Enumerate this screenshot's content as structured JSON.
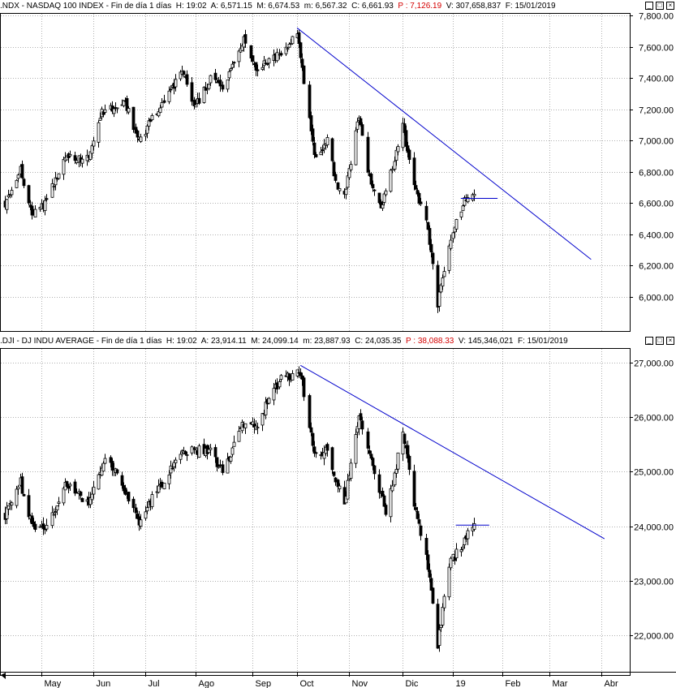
{
  "panels": [
    {
      "symbol": ".NDX",
      "name": "NASDAQ 100 INDEX",
      "period": "Fin de día 1 días",
      "h_label": "H:",
      "h_value": "19:02",
      "a_label": "A:",
      "a_value": "6,571.15",
      "m_label": "M:",
      "m_value": "6,674.53",
      "mn_label": "m:",
      "mn_value": "6,567.32",
      "c_label": "C:",
      "c_value": "6,661.93",
      "p_label": "P :",
      "p_value": "7,126.19",
      "v_label": "V:",
      "v_value": "307,658,837",
      "f_label": "F:",
      "f_value": "15/01/2019"
    },
    {
      "symbol": ".DJI",
      "name": "DJ INDU AVERAGE",
      "period": "Fin de día 1 días",
      "h_label": "H:",
      "h_value": "19:02",
      "a_label": "A:",
      "a_value": "23,914.11",
      "m_label": "M:",
      "m_value": "24,099.14",
      "mn_label": "m:",
      "mn_value": "23,887.93",
      "c_label": "C:",
      "c_value": "24,035.35",
      "p_label": "P :",
      "p_value": "38,088.33",
      "v_label": "V:",
      "v_value": "145,346,021",
      "f_label": "F:",
      "f_value": "15/01/2019"
    }
  ],
  "window_buttons": [
    "_",
    "□",
    "×"
  ],
  "colors": {
    "trendline": "#0000cc",
    "candle": "#000000",
    "grid": "#b0b0b0",
    "price_open": "#d40000"
  },
  "chart_data": [
    {
      "type": "candlestick",
      "title": ".NDX - NASDAQ 100 INDEX",
      "yticks": [
        "7,800.00",
        "7,600.00",
        "7,400.00",
        "7,200.00",
        "7,000.00",
        "6,800.00",
        "6,600.00",
        "6,400.00",
        "6,200.00",
        "6,000.00"
      ],
      "ylim": [
        5880,
        7810
      ],
      "grid": true,
      "anchors": [
        [
          "2018-04-09",
          6600
        ],
        [
          "2018-04-18",
          6820
        ],
        [
          "2018-04-25",
          6530
        ],
        [
          "2018-05-03",
          6600
        ],
        [
          "2018-05-15",
          6900
        ],
        [
          "2018-05-29",
          6880
        ],
        [
          "2018-06-06",
          7180
        ],
        [
          "2018-06-20",
          7250
        ],
        [
          "2018-06-28",
          7000
        ],
        [
          "2018-07-10",
          7200
        ],
        [
          "2018-07-25",
          7450
        ],
        [
          "2018-07-31",
          7200
        ],
        [
          "2018-08-10",
          7400
        ],
        [
          "2018-08-17",
          7320
        ],
        [
          "2018-08-30",
          7650
        ],
        [
          "2018-09-07",
          7450
        ],
        [
          "2018-09-14",
          7520
        ],
        [
          "2018-09-21",
          7550
        ],
        [
          "2018-10-01",
          7680
        ],
        [
          "2018-10-11",
          6900
        ],
        [
          "2018-10-19",
          7000
        ],
        [
          "2018-10-25",
          6700
        ],
        [
          "2018-10-29",
          6650
        ],
        [
          "2018-11-07",
          7150
        ],
        [
          "2018-11-12",
          6800
        ],
        [
          "2018-11-20",
          6550
        ],
        [
          "2018-11-26",
          6800
        ],
        [
          "2018-12-03",
          7100
        ],
        [
          "2018-12-10",
          6700
        ],
        [
          "2018-12-17",
          6500
        ],
        [
          "2018-12-24",
          5950
        ],
        [
          "2018-12-31",
          6350
        ],
        [
          "2019-01-08",
          6600
        ],
        [
          "2019-01-15",
          6660
        ]
      ],
      "trendlines": [
        {
          "from": [
            "2018-10-01",
            7720
          ],
          "to": [
            "2019-03-26",
            6240
          ]
        },
        {
          "from": [
            "2019-01-07",
            6630
          ],
          "to": [
            "2019-01-29",
            6630
          ]
        }
      ]
    },
    {
      "type": "candlestick",
      "title": ".DJI - DJ INDU AVERAGE",
      "yticks": [
        "27,000.00",
        "26,000.00",
        "25,000.00",
        "24,000.00",
        "23,000.00",
        "22,000.00"
      ],
      "ylim": [
        21500,
        27200
      ],
      "grid": true,
      "x_labels": [
        "May",
        "Jun",
        "Jul",
        "Ago",
        "Sep",
        "Oct",
        "Nov",
        "Dic",
        "19",
        "Feb",
        "Mar",
        "Abr"
      ],
      "anchors": [
        [
          "2018-04-09",
          24200
        ],
        [
          "2018-04-18",
          24800
        ],
        [
          "2018-04-25",
          24000
        ],
        [
          "2018-05-03",
          23900
        ],
        [
          "2018-05-15",
          24800
        ],
        [
          "2018-05-29",
          24400
        ],
        [
          "2018-06-08",
          25300
        ],
        [
          "2018-06-18",
          24800
        ],
        [
          "2018-06-28",
          24100
        ],
        [
          "2018-07-10",
          24700
        ],
        [
          "2018-07-25",
          25400
        ],
        [
          "2018-08-10",
          25400
        ],
        [
          "2018-08-17",
          25000
        ],
        [
          "2018-08-30",
          25900
        ],
        [
          "2018-09-07",
          25900
        ],
        [
          "2018-09-21",
          26700
        ],
        [
          "2018-10-03",
          26800
        ],
        [
          "2018-10-11",
          25300
        ],
        [
          "2018-10-19",
          25400
        ],
        [
          "2018-10-29",
          24400
        ],
        [
          "2018-11-07",
          26100
        ],
        [
          "2018-11-12",
          25400
        ],
        [
          "2018-11-23",
          24300
        ],
        [
          "2018-11-26",
          24600
        ],
        [
          "2018-12-03",
          25800
        ],
        [
          "2018-12-10",
          24400
        ],
        [
          "2018-12-17",
          23500
        ],
        [
          "2018-12-24",
          21800
        ],
        [
          "2018-12-31",
          23300
        ],
        [
          "2019-01-08",
          23700
        ],
        [
          "2019-01-15",
          24035
        ]
      ],
      "trendlines": [
        {
          "from": [
            "2018-10-03",
            26950
          ],
          "to": [
            "2019-04-03",
            23770
          ]
        },
        {
          "from": [
            "2019-01-04",
            24020
          ],
          "to": [
            "2019-01-24",
            24020
          ]
        }
      ]
    }
  ]
}
